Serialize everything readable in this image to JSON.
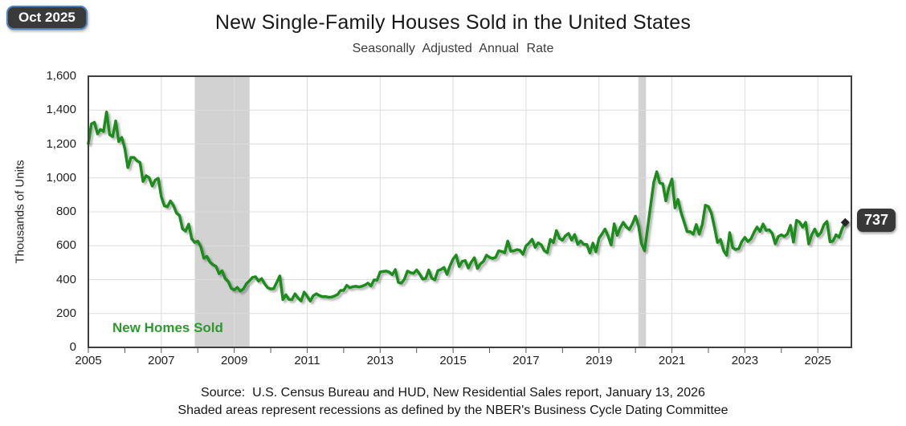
{
  "header": {
    "title": "New Single-Family Houses Sold in the United States",
    "subtitle": "Seasonally Adjusted Annual Rate"
  },
  "badges": {
    "date_label": "Oct 2025",
    "latest_value": "737"
  },
  "footer": {
    "source_line1": "Source:  U.S. Census Bureau and HUD, New Residential Sales report, January 13, 2026",
    "source_line2": "Shaded areas represent recessions as defined by the NBER's Business Cycle Dating Committee"
  },
  "colors": {
    "line": "#1f8c1f",
    "series_label": "#2e992e",
    "marker": "#262626",
    "badge_bg": "#3a3a3a",
    "badge_border": "#4f81bd",
    "recession_band": "#d2d2d2",
    "grid": "#dcdcdc",
    "axis_border": "#3f3f3f",
    "tick": "#595959"
  },
  "chart_data": {
    "type": "line",
    "title": "New Single-Family Houses Sold in the United States",
    "subtitle": "Seasonally Adjusted Annual Rate",
    "ylabel": "Thousands of Units",
    "xlabel": "",
    "series_label": "New Homes Sold",
    "legend_position": "inside-bottom-left",
    "grid": "on",
    "unit": "thousands of units, SAAR, monthly",
    "x_axis": {
      "min": 2005.0,
      "max": 2025.92,
      "tick_mark_every_years": 1,
      "label_years": [
        2005,
        2007,
        2009,
        2011,
        2013,
        2015,
        2017,
        2019,
        2021,
        2023,
        2025
      ]
    },
    "y_axis": {
      "min": 0,
      "max": 1600,
      "tick_step": 200,
      "tick_labels": [
        "0",
        "200",
        "400",
        "600",
        "800",
        "1,000",
        "1,200",
        "1,400",
        "1,600"
      ]
    },
    "recessions": [
      [
        2007.92,
        2009.42
      ],
      [
        2020.08,
        2020.29
      ]
    ],
    "latest": {
      "month_label": "Oct 2025",
      "value": 737
    },
    "x_start_year": 2005,
    "x_step_months": 1,
    "values": [
      1203,
      1319,
      1328,
      1260,
      1286,
      1274,
      1389,
      1255,
      1244,
      1336,
      1214,
      1239,
      1174,
      1061,
      1121,
      1121,
      1101,
      1091,
      979,
      1013,
      1001,
      952,
      987,
      998,
      890,
      835,
      830,
      864,
      837,
      793,
      778,
      699,
      686,
      727,
      641,
      619,
      627,
      593,
      526,
      537,
      503,
      487,
      478,
      435,
      452,
      406,
      389,
      349,
      339,
      354,
      332,
      345,
      376,
      393,
      413,
      417,
      391,
      406,
      375,
      352,
      345,
      347,
      384,
      422,
      282,
      310,
      283,
      282,
      316,
      291,
      274,
      326,
      301,
      273,
      305,
      316,
      306,
      299,
      300,
      296,
      297,
      303,
      312,
      336,
      336,
      366,
      352,
      358,
      360,
      357,
      360,
      368,
      379,
      362,
      398,
      396,
      445,
      448,
      450,
      444,
      429,
      459,
      383,
      379,
      403,
      450,
      441,
      437,
      457,
      432,
      403,
      408,
      457,
      408,
      399,
      453,
      459,
      472,
      431,
      481,
      521,
      545,
      477,
      508,
      512,
      468,
      503,
      529,
      466,
      493,
      508,
      544,
      531,
      525,
      531,
      570,
      566,
      558,
      627,
      567,
      570,
      577,
      573,
      549,
      599,
      615,
      638,
      590,
      617,
      605,
      571,
      559,
      637,
      618,
      689,
      643,
      633,
      659,
      672,
      633,
      666,
      608,
      628,
      607,
      607,
      557,
      615,
      564,
      644,
      669,
      698,
      656,
      604,
      729,
      661,
      706,
      738,
      710,
      696,
      730,
      774,
      716,
      612,
      570,
      704,
      839,
      972,
      1036,
      971,
      965,
      865,
      943,
      993,
      823,
      873,
      796,
      740,
      683,
      683,
      668,
      725,
      668,
      725,
      839,
      831,
      790,
      707,
      619,
      636,
      571,
      543,
      677,
      588,
      577,
      582,
      625,
      649,
      625,
      640,
      679,
      710,
      684,
      728,
      690,
      694,
      672,
      611,
      654,
      664,
      654,
      670,
      720,
      621,
      750,
      739,
      709,
      738,
      610,
      664,
      698,
      657,
      676,
      724,
      743,
      623,
      627,
      664,
      650,
      700,
      737
    ]
  }
}
